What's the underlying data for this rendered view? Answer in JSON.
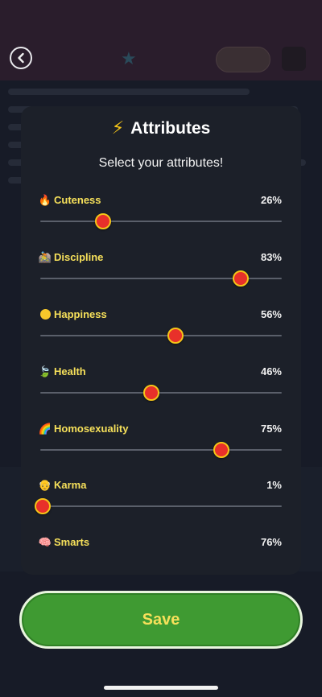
{
  "modal": {
    "title": "Attributes",
    "subtitle": "Select your attributes!",
    "icon": "lightning-icon"
  },
  "attributes": [
    {
      "key": "cuteness",
      "label": "Cuteness",
      "icon": "fire-icon",
      "value_text": "26%",
      "value": 0.26
    },
    {
      "key": "discipline",
      "label": "Discipline",
      "icon": "biker-icon",
      "value_text": "83%",
      "value": 0.83
    },
    {
      "key": "happiness",
      "label": "Happiness",
      "icon": "smile-icon",
      "value_text": "56%",
      "value": 0.56
    },
    {
      "key": "health",
      "label": "Health",
      "icon": "leaf-icon",
      "value_text": "46%",
      "value": 0.46
    },
    {
      "key": "homosexuality",
      "label": "Homosexuality",
      "icon": "rainbow-icon",
      "value_text": "75%",
      "value": 0.75
    },
    {
      "key": "karma",
      "label": "Karma",
      "icon": "old-person-icon",
      "value_text": "1%",
      "value": 0.01
    },
    {
      "key": "smarts",
      "label": "Smarts",
      "icon": "brain-icon",
      "value_text": "76%",
      "value": 0.76
    }
  ],
  "save_button": {
    "label": "Save"
  },
  "colors": {
    "accent_yellow": "#f6e05a",
    "save_green": "#3f9a32",
    "thumb_red": "#e8302a",
    "modal_bg": "#1c2029"
  }
}
